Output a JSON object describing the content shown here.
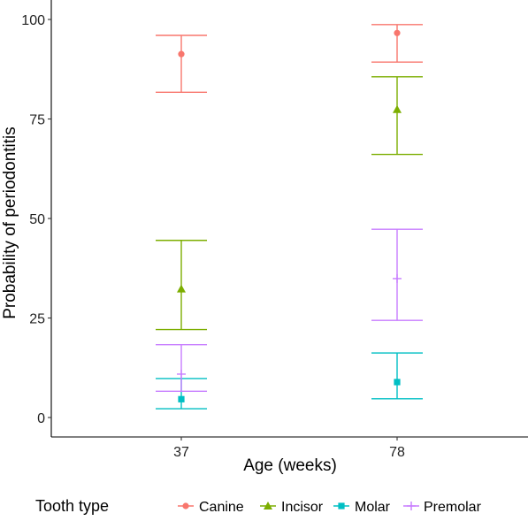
{
  "chart_data": {
    "type": "scatter",
    "subtype": "point-with-error-bars",
    "title": "",
    "xlabel": "Age (weeks)",
    "ylabel": "Probability of periodontitis",
    "categories": [
      "37",
      "78"
    ],
    "ylim": [
      -5,
      102.5
    ],
    "yticks": [
      0,
      25,
      50,
      75,
      100
    ],
    "ytick_labels": [
      "0",
      "25",
      "50",
      "75",
      "100"
    ],
    "grid": false,
    "legend": {
      "title": "Tooth type",
      "position": "bottom",
      "entries": [
        "Canine",
        "Incisor",
        "Molar",
        "Premolar"
      ]
    },
    "series": [
      {
        "name": "Canine",
        "color": "#F8766D",
        "marker": "circle",
        "values": [
          91.3,
          96.6
        ],
        "lower": [
          81.7,
          89.3
        ],
        "upper": [
          96.0,
          98.7
        ]
      },
      {
        "name": "Incisor",
        "color": "#7CAE00",
        "marker": "triangle",
        "values": [
          32.3,
          77.4
        ],
        "lower": [
          22.1,
          66.1
        ],
        "upper": [
          44.5,
          85.6
        ]
      },
      {
        "name": "Molar",
        "color": "#00BFC4",
        "marker": "square",
        "values": [
          4.6,
          8.9
        ],
        "lower": [
          2.2,
          4.7
        ],
        "upper": [
          9.8,
          16.2
        ]
      },
      {
        "name": "Premolar",
        "color": "#C77CFF",
        "marker": "plus",
        "values": [
          10.9,
          34.9
        ],
        "lower": [
          6.6,
          24.4
        ],
        "upper": [
          18.3,
          47.3
        ]
      }
    ]
  }
}
